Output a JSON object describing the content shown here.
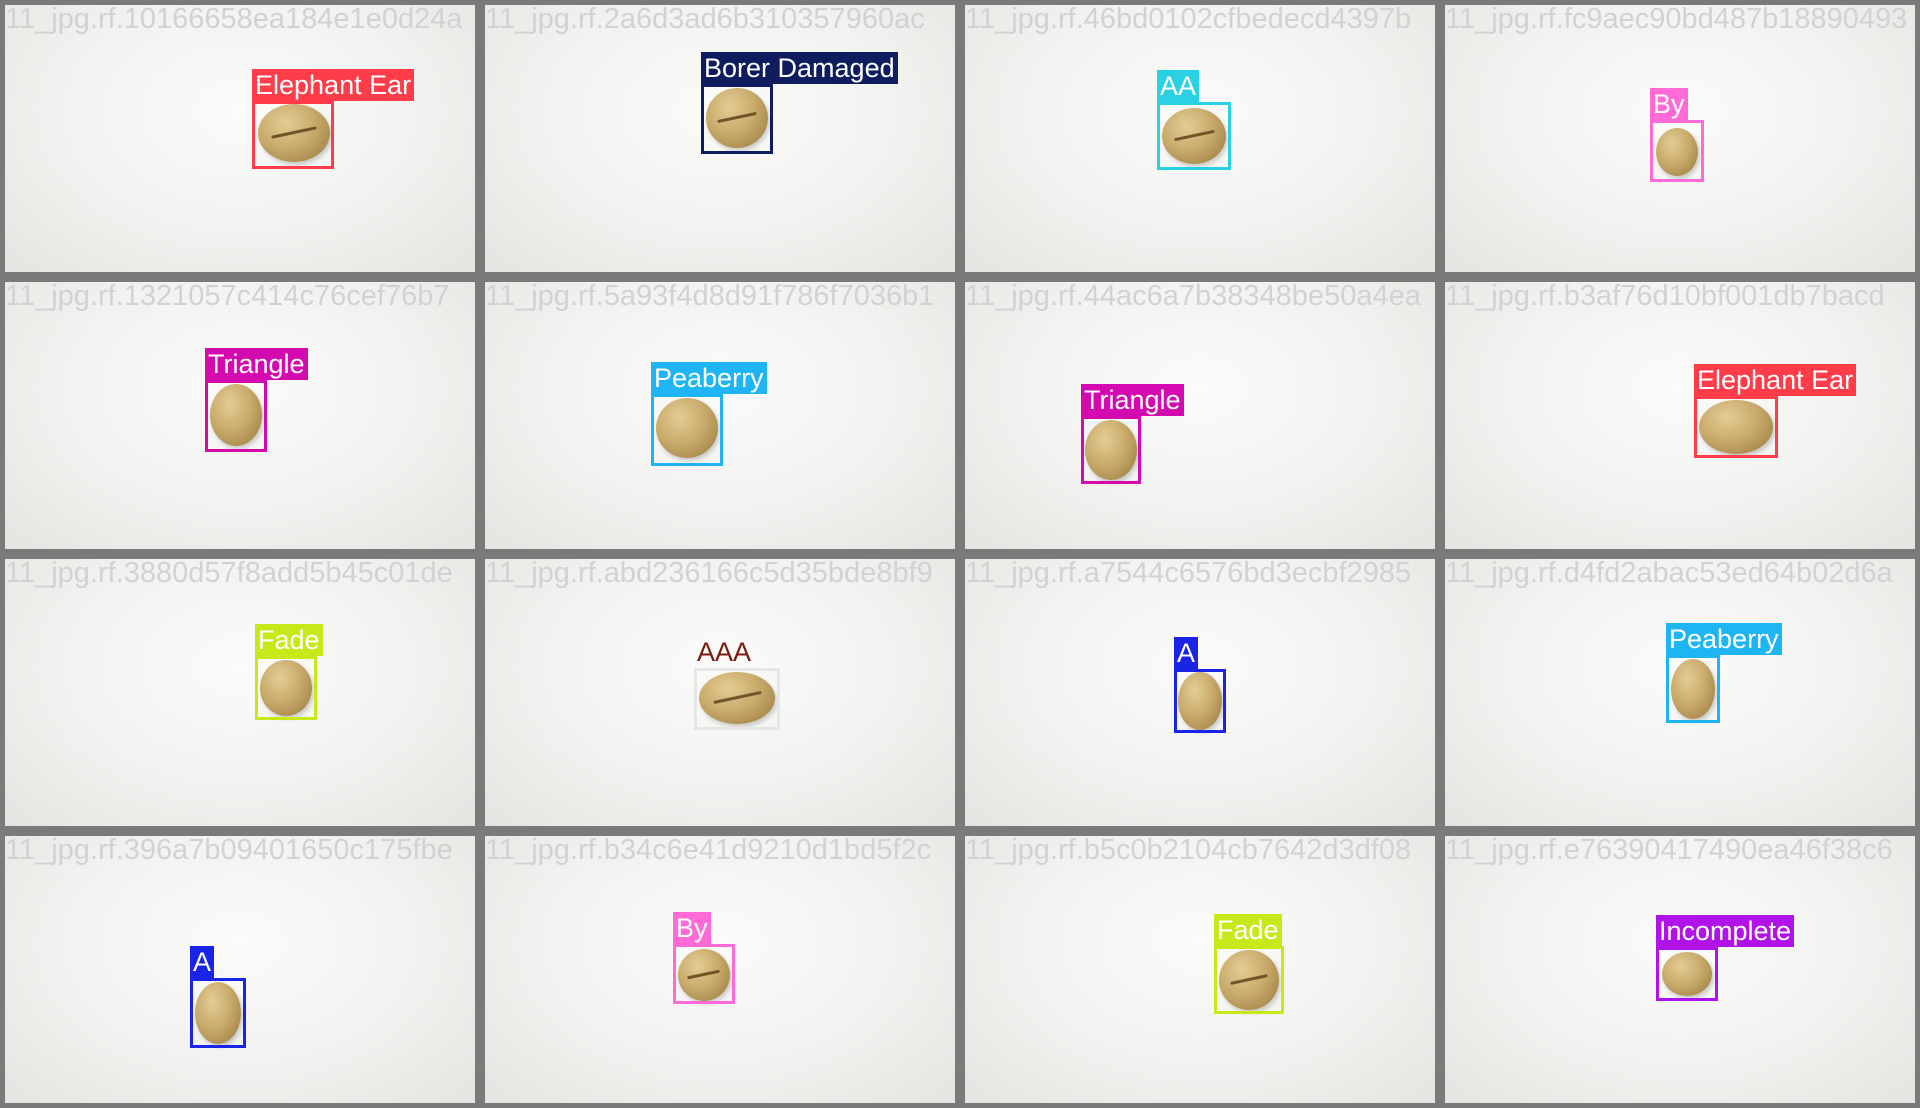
{
  "tiles": [
    {
      "filename": "11_jpg.rf.10166658ea184e1e0d24a",
      "label": "Elephant Ear",
      "color": "#ff3d4a",
      "text_color": "#ffffff"
    },
    {
      "filename": "11_jpg.rf.2a6d3ad6b310357960ac",
      "label": "Borer Damaged",
      "color": "#0f1d5e",
      "text_color": "#ffffff"
    },
    {
      "filename": "11_jpg.rf.46bd0102cfbedecd4397b",
      "label": "AA",
      "color": "#2ad1e4",
      "text_color": "#ffffff"
    },
    {
      "filename": "11_jpg.rf.fc9aec90bd487b18890493",
      "label": "By",
      "color": "#ff6ad6",
      "text_color": "#ffffff"
    },
    {
      "filename": "11_jpg.rf.1321057c414c76cef76b7",
      "label": "Triangle",
      "color": "#d20ab0",
      "text_color": "#ffffff"
    },
    {
      "filename": "11_jpg.rf.5a93f4d8d91f786f7036b1",
      "label": "Peaberry",
      "color": "#1eb5f2",
      "text_color": "#ffffff"
    },
    {
      "filename": "11_jpg.rf.44ac6a7b38348be50a4ea",
      "label": "Triangle",
      "color": "#d20ab0",
      "text_color": "#ffffff"
    },
    {
      "filename": "11_jpg.rf.b3af76d10bf001db7bacd",
      "label": "Elephant Ear",
      "color": "#ff3d4a",
      "text_color": "#ffffff"
    },
    {
      "filename": "11_jpg.rf.3880d57f8add5b45c01de",
      "label": "Fade",
      "color": "#c8e81a",
      "text_color": "#ffffff"
    },
    {
      "filename": "11_jpg.rf.abd236166c5d35bde8bf9",
      "label": "AAA",
      "color": "#e6e6e6",
      "text_color": "#7a1a10"
    },
    {
      "filename": "11_jpg.rf.a7544c6576bd3ecbf2985",
      "label": "A",
      "color": "#1a24e6",
      "text_color": "#ffffff"
    },
    {
      "filename": "11_jpg.rf.d4fd2abac53ed64b02d6a",
      "label": "Peaberry",
      "color": "#1eb5f2",
      "text_color": "#ffffff"
    },
    {
      "filename": "11_jpg.rf.396a7b09401650c175fbe",
      "label": "A",
      "color": "#1a24e6",
      "text_color": "#ffffff"
    },
    {
      "filename": "11_jpg.rf.b34c6e41d9210d1bd5f2c",
      "label": "By",
      "color": "#ff6ad6",
      "text_color": "#ffffff"
    },
    {
      "filename": "11_jpg.rf.b5c0b2104cb7642d3df08",
      "label": "Fade",
      "color": "#c8e81a",
      "text_color": "#ffffff"
    },
    {
      "filename": "11_jpg.rf.e76390417490ea46f38c6",
      "label": "Incomplete",
      "color": "#b012e8",
      "text_color": "#ffffff"
    }
  ]
}
